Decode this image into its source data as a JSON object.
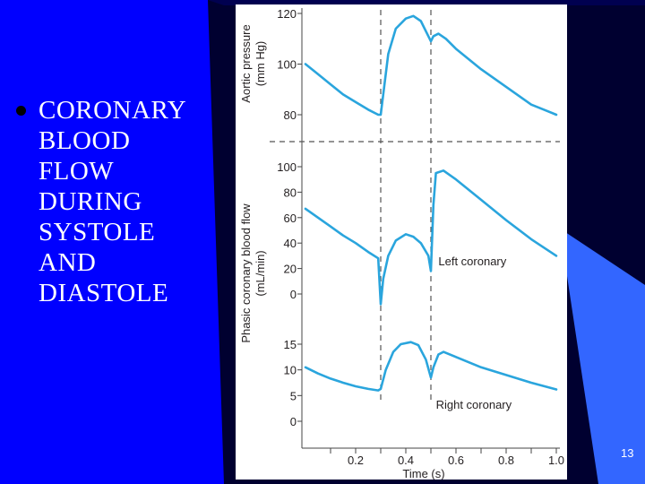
{
  "slide": {
    "title_lines": [
      "CORONARY",
      "BLOOD",
      "FLOW",
      "DURING",
      "SYSTOLE",
      "AND",
      "DIASTOLE"
    ],
    "page_number": "13",
    "colors": {
      "background_blue": "#0000ff",
      "accent_blue": "#3366ff",
      "dark_navy": "#000030"
    },
    "bullet_icon": "bullet-dot"
  },
  "chart_data": {
    "type": "line",
    "xlabel": "Time (s)",
    "x_ticks": [
      "0.2",
      "0.4",
      "0.6",
      "0.8",
      "1.0"
    ],
    "xlim": [
      0,
      1.0
    ],
    "vertical_markers": [
      0.3,
      0.5
    ],
    "curve_color": "#2aa5dd",
    "panels": [
      {
        "ylabel": [
          "Aortic pressure",
          "(mm Hg)"
        ],
        "y_ticks": [
          80,
          100,
          120
        ],
        "ylim": [
          80,
          120
        ],
        "series": [
          {
            "x": [
              0.0,
              0.05,
              0.1,
              0.15,
              0.2,
              0.25,
              0.29,
              0.3,
              0.31,
              0.33,
              0.36,
              0.4,
              0.43,
              0.46,
              0.49,
              0.5,
              0.51,
              0.53,
              0.56,
              0.6,
              0.7,
              0.8,
              0.9,
              0.95,
              1.0
            ],
            "values": [
              100,
              96,
              92,
              88,
              85,
              82,
              80,
              80,
              88,
              104,
              114,
              118,
              119,
              117,
              111,
              109,
              111,
              112,
              110,
              106,
              98,
              91,
              84,
              82,
              80
            ]
          }
        ]
      },
      {
        "ylabel": [
          "Phasic coronary blood flow",
          "(mL/min)"
        ],
        "y_ticks": [
          0,
          20,
          40,
          60,
          80,
          100
        ],
        "ylim": [
          0,
          100
        ],
        "series": [
          {
            "name": "Left coronary",
            "x": [
              0.0,
              0.05,
              0.1,
              0.15,
              0.2,
              0.25,
              0.29,
              0.3,
              0.31,
              0.33,
              0.36,
              0.4,
              0.43,
              0.46,
              0.49,
              0.5,
              0.51,
              0.52,
              0.55,
              0.6,
              0.7,
              0.8,
              0.9,
              1.0
            ],
            "values": [
              67,
              60,
              53,
              46,
              40,
              33,
              28,
              -8,
              12,
              30,
              42,
              47,
              45,
              40,
              30,
              18,
              70,
              95,
              97,
              90,
              74,
              58,
              43,
              30
            ]
          }
        ]
      },
      {
        "ylabel": [],
        "y_ticks": [
          0,
          5,
          10,
          15
        ],
        "ylim": [
          0,
          15
        ],
        "series": [
          {
            "name": "Right coronary",
            "x": [
              0.0,
              0.05,
              0.1,
              0.15,
              0.2,
              0.25,
              0.29,
              0.3,
              0.32,
              0.35,
              0.38,
              0.42,
              0.45,
              0.48,
              0.5,
              0.51,
              0.53,
              0.55,
              0.6,
              0.7,
              0.8,
              0.9,
              1.0
            ],
            "values": [
              10.5,
              9.3,
              8.3,
              7.5,
              6.8,
              6.3,
              6.0,
              6.3,
              10,
              13.5,
              15,
              15.4,
              14.8,
              12,
              8.5,
              10.5,
              13,
              13.5,
              12.5,
              10.5,
              9,
              7.5,
              6.2
            ]
          }
        ]
      }
    ]
  }
}
